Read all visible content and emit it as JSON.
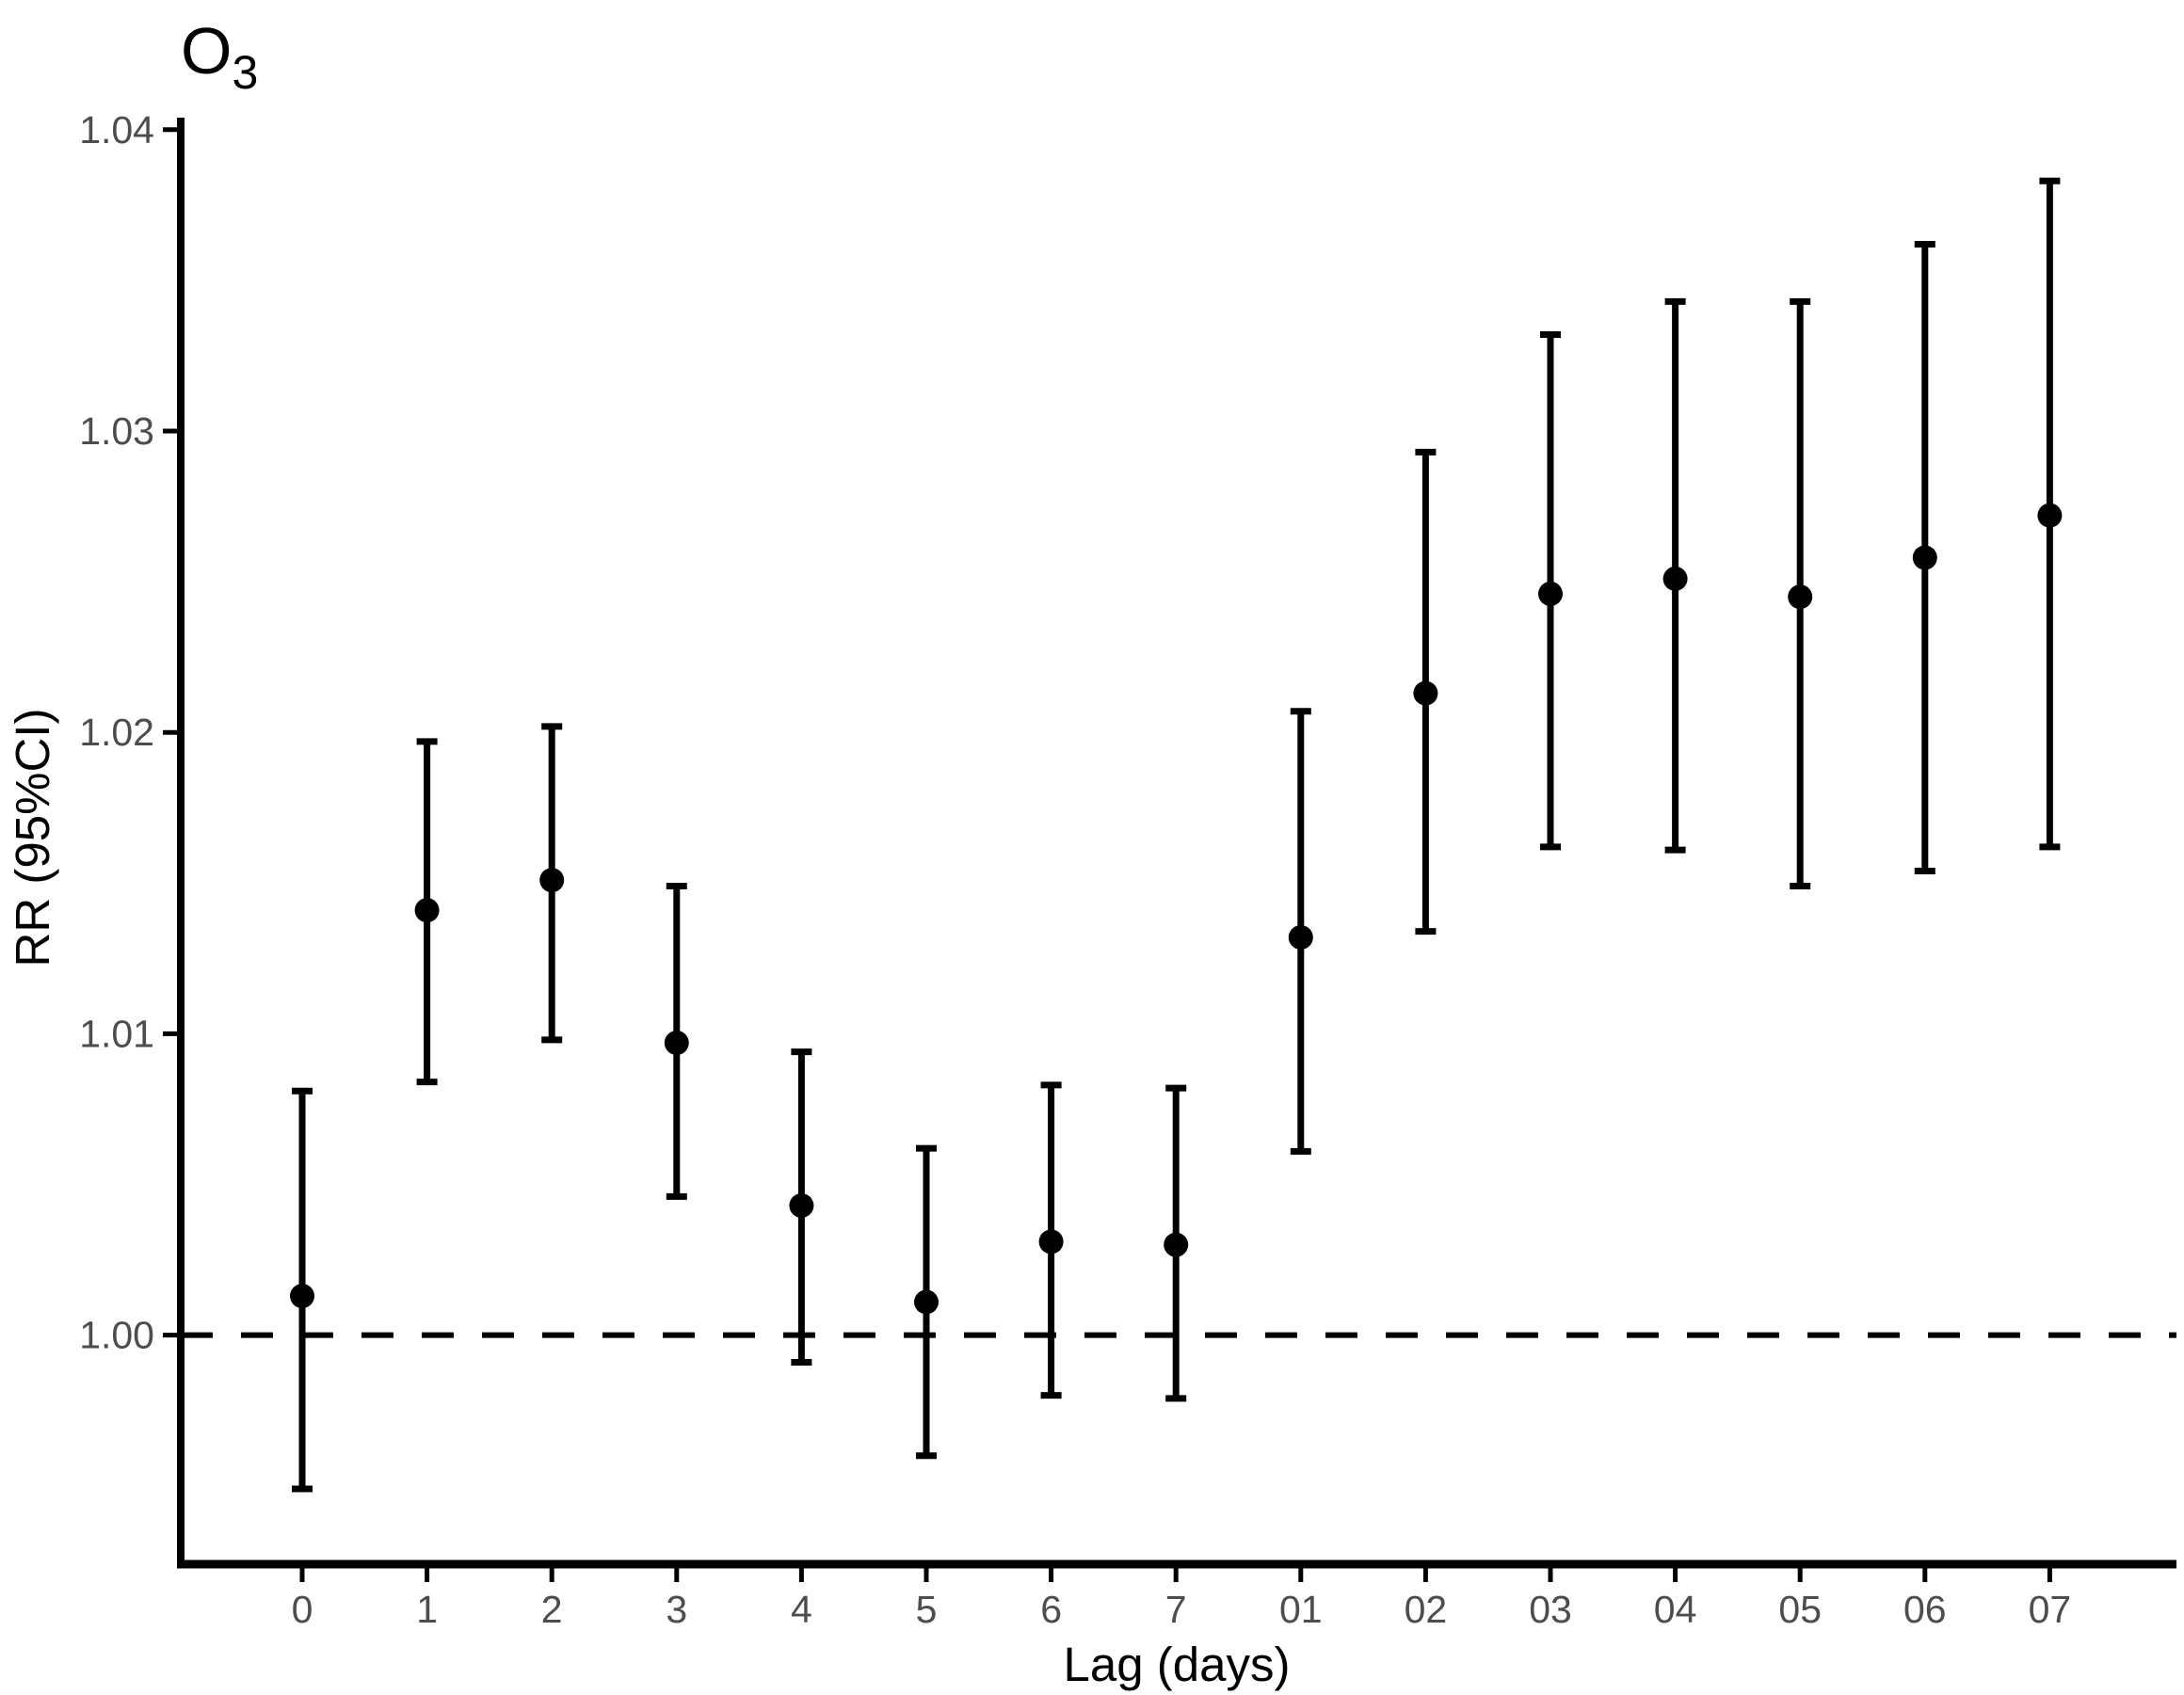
{
  "title": {
    "text": "O",
    "subscript": "3"
  },
  "y_axis": {
    "label": "RR (95%CI)",
    "tick_labels": [
      "1.00",
      "1.01",
      "1.02",
      "1.03",
      "1.04"
    ],
    "tick_values": [
      1.0,
      1.01,
      1.02,
      1.03,
      1.04
    ]
  },
  "x_axis": {
    "label": "Lag (days)",
    "categories": [
      "0",
      "1",
      "2",
      "3",
      "4",
      "5",
      "6",
      "7",
      "01",
      "02",
      "03",
      "04",
      "05",
      "06",
      "07"
    ]
  },
  "reference_line": {
    "value": 1.0,
    "style": "dashed"
  },
  "colors": {
    "marks": "#000000",
    "axis": "#000000",
    "tick_labels": "#4d4d4d",
    "background": "#ffffff"
  },
  "chart_data": {
    "type": "scatter",
    "subtype": "pointrange-forest",
    "title": "O3",
    "xlabel": "Lag (days)",
    "ylabel": "RR (95%CI)",
    "categories": [
      "0",
      "1",
      "2",
      "3",
      "4",
      "5",
      "6",
      "7",
      "01",
      "02",
      "03",
      "04",
      "05",
      "06",
      "07"
    ],
    "series": [
      {
        "name": "RR",
        "values": [
          1.0013,
          1.0141,
          1.0151,
          1.0097,
          1.0043,
          1.0011,
          1.0031,
          1.003,
          1.0132,
          1.0213,
          1.0246,
          1.0251,
          1.0245,
          1.0258,
          1.0272
        ]
      },
      {
        "name": "CI_low",
        "values": [
          0.9949,
          1.0084,
          1.0098,
          1.0046,
          0.9991,
          0.996,
          0.998,
          0.9979,
          1.0061,
          1.0134,
          1.0162,
          1.0161,
          1.0149,
          1.0154,
          1.0162
        ]
      },
      {
        "name": "CI_high",
        "values": [
          1.0081,
          1.0197,
          1.0202,
          1.0149,
          1.0094,
          1.0062,
          1.0083,
          1.0082,
          1.0207,
          1.0293,
          1.0332,
          1.0343,
          1.0343,
          1.0362,
          1.0383
        ]
      }
    ],
    "reference_line": 1.0,
    "ylim": [
      0.9924,
      1.0404
    ],
    "grid": false,
    "legend_position": "none"
  }
}
